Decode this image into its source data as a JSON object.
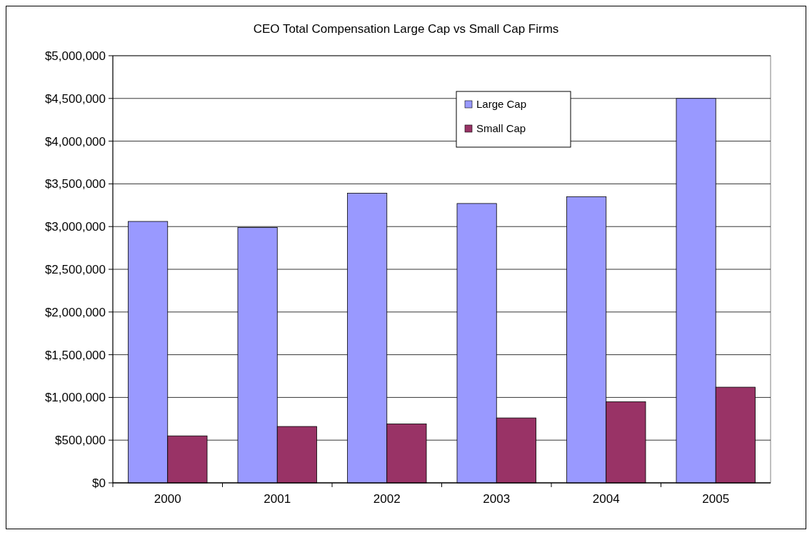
{
  "chart_data": {
    "type": "bar",
    "title": "CEO Total Compensation Large Cap vs Small Cap Firms",
    "categories": [
      "2000",
      "2001",
      "2002",
      "2003",
      "2004",
      "2005"
    ],
    "series": [
      {
        "name": "Large Cap",
        "color": "#9999ff",
        "values": [
          3060000,
          2990000,
          3390000,
          3270000,
          3350000,
          4500000
        ]
      },
      {
        "name": "Small Cap",
        "color": "#993366",
        "values": [
          550000,
          660000,
          690000,
          760000,
          950000,
          1120000
        ]
      }
    ],
    "ylim": [
      0,
      5000000
    ],
    "yticks": [
      {
        "value": 0,
        "label": "$0"
      },
      {
        "value": 500000,
        "label": "$500,000"
      },
      {
        "value": 1000000,
        "label": "$1,000,000"
      },
      {
        "value": 1500000,
        "label": "$1,500,000"
      },
      {
        "value": 2000000,
        "label": "$2,000,000"
      },
      {
        "value": 2500000,
        "label": "$2,500,000"
      },
      {
        "value": 3000000,
        "label": "$3,000,000"
      },
      {
        "value": 3500000,
        "label": "$3,500,000"
      },
      {
        "value": 4000000,
        "label": "$4,000,000"
      },
      {
        "value": 4500000,
        "label": "$4,500,000"
      },
      {
        "value": 5000000,
        "label": "$5,000,000"
      }
    ],
    "grid": "y",
    "legend": "top right"
  }
}
